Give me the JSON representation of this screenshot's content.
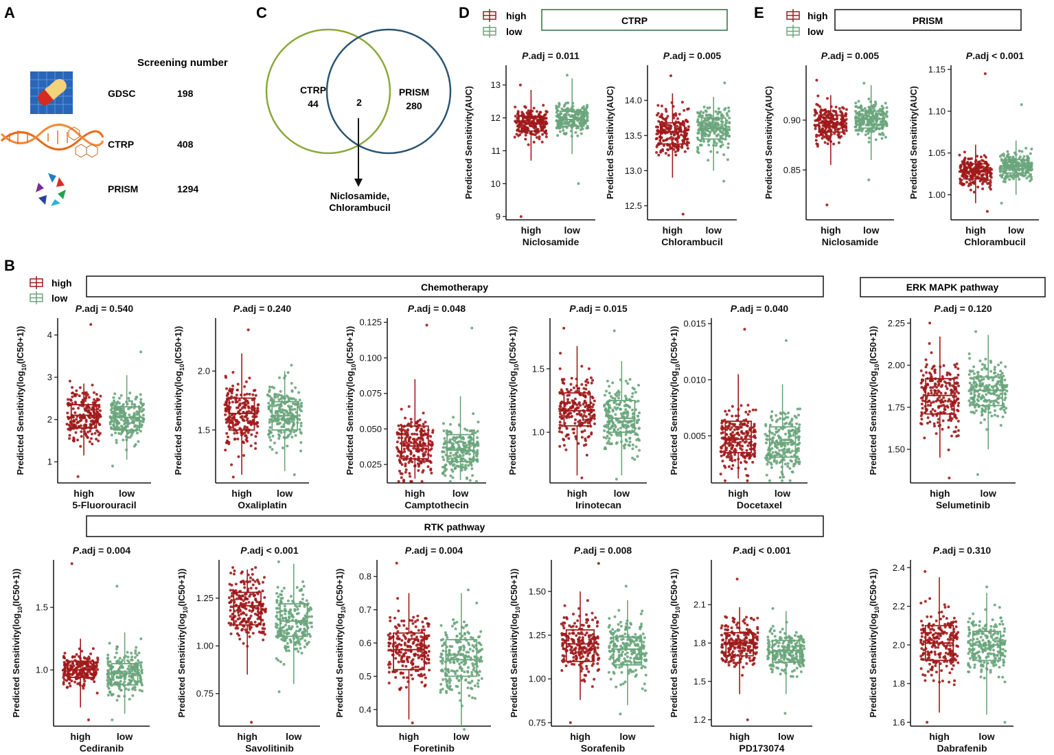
{
  "panels": {
    "a": {
      "letter": "A",
      "heading": "Screening number",
      "rows": [
        {
          "name": "GDSC",
          "count": "198",
          "icon": "pill-icon"
        },
        {
          "name": "CTRP",
          "count": "408",
          "icon": "dna-icon"
        },
        {
          "name": "PRISM",
          "count": "1294",
          "icon": "prism-logo-icon"
        }
      ]
    },
    "b": {
      "letter": "B",
      "chemo_header": "Chemotherapy",
      "rtk_header": "RTK pathway",
      "erk_header": "ERK MAPK pathway"
    },
    "c": {
      "letter": "C",
      "left_set": "CTRP",
      "left_count": "44",
      "overlap_count": "2",
      "right_set": "PRISM",
      "right_count": "280",
      "result_line1": "Niclosamide,",
      "result_line2": "Chlorambucil"
    },
    "d": {
      "letter": "D",
      "header": "CTRP"
    },
    "e": {
      "letter": "E",
      "header": "PRISM"
    }
  },
  "legend": {
    "high": "high",
    "low": "low"
  },
  "colors": {
    "high": "#a0191b",
    "low": "#6aa57c",
    "venn_left": "#8aa83a",
    "venn_right": "#2b5572",
    "box_border_d": "#2e6b3c"
  },
  "chart_data": [
    {
      "id": "d1",
      "type": "box",
      "title": "P.adj = 0.011",
      "xlabel": "Niclosamide",
      "ylabel": "Predicted Sensitivity(AUC)",
      "categories": [
        "high",
        "low"
      ],
      "ylim": [
        8.9,
        13.6
      ],
      "yticks": [
        9,
        10,
        11,
        12,
        13
      ],
      "tick_labels": [
        "9",
        "10",
        "11",
        "12",
        "13"
      ],
      "boxes": [
        {
          "q1": 11.6,
          "median": 11.85,
          "q3": 12.05,
          "wlo": 10.7,
          "whi": 12.85,
          "min": 9.0,
          "max": 13.0
        },
        {
          "q1": 11.75,
          "median": 11.95,
          "q3": 12.2,
          "wlo": 10.9,
          "whi": 13.2,
          "min": 10.0,
          "max": 13.3
        }
      ]
    },
    {
      "id": "d2",
      "type": "box",
      "title": "P.adj = 0.005",
      "xlabel": "Chlorambucil",
      "ylabel": "Predicted Sensitivity(AUC)",
      "categories": [
        "high",
        "low"
      ],
      "ylim": [
        12.3,
        14.5
      ],
      "yticks": [
        12.5,
        13.0,
        13.5,
        14.0
      ],
      "tick_labels": [
        "12.5",
        "13.0",
        "13.5",
        "14.0"
      ],
      "boxes": [
        {
          "q1": 13.38,
          "median": 13.55,
          "q3": 13.68,
          "wlo": 12.9,
          "whi": 14.1,
          "min": 12.38,
          "max": 14.35
        },
        {
          "q1": 13.45,
          "median": 13.6,
          "q3": 13.75,
          "wlo": 13.0,
          "whi": 14.05,
          "min": 12.85,
          "max": 14.25
        }
      ]
    },
    {
      "id": "e1",
      "type": "box",
      "title": "P.adj = 0.005",
      "xlabel": "Niclosamide",
      "ylabel": "Predicted Sensitivity(AUC)",
      "categories": [
        "high",
        "low"
      ],
      "ylim": [
        0.8,
        0.955
      ],
      "yticks": [
        0.85,
        0.9
      ],
      "tick_labels": [
        "0.85",
        "0.90"
      ],
      "boxes": [
        {
          "q1": 0.888,
          "median": 0.897,
          "q3": 0.905,
          "wlo": 0.855,
          "whi": 0.925,
          "min": 0.815,
          "max": 0.94
        },
        {
          "q1": 0.892,
          "median": 0.901,
          "q3": 0.909,
          "wlo": 0.86,
          "whi": 0.935,
          "min": 0.84,
          "max": 0.937
        }
      ]
    },
    {
      "id": "e2",
      "type": "box",
      "title": "P.adj < 0.001",
      "xlabel": "Chlorambucil",
      "ylabel": "Predicted Sensitivity(AUC)",
      "categories": [
        "high",
        "low"
      ],
      "ylim": [
        0.97,
        1.155
      ],
      "yticks": [
        1.0,
        1.05,
        1.1,
        1.15
      ],
      "tick_labels": [
        "1.00",
        "1.05",
        "1.10",
        "1.15"
      ],
      "boxes": [
        {
          "q1": 1.019,
          "median": 1.028,
          "q3": 1.037,
          "wlo": 0.99,
          "whi": 1.06,
          "min": 0.98,
          "max": 1.145
        },
        {
          "q1": 1.026,
          "median": 1.034,
          "q3": 1.042,
          "wlo": 1.0,
          "whi": 1.065,
          "min": 0.99,
          "max": 1.108
        }
      ]
    },
    {
      "id": "b1",
      "type": "box",
      "title": "P.adj = 0.540",
      "xlabel": "5-Fluorouracil",
      "ylabel": "Predicted Sensitivity(log10(IC50+1))",
      "categories": [
        "high",
        "low"
      ],
      "ylim": [
        0.5,
        4.4
      ],
      "yticks": [
        1,
        2,
        3,
        4
      ],
      "tick_labels": [
        "1",
        "2",
        "3",
        "4"
      ],
      "boxes": [
        {
          "q1": 1.8,
          "median": 2.1,
          "q3": 2.35,
          "wlo": 1.15,
          "whi": 2.85,
          "min": 0.65,
          "max": 4.25
        },
        {
          "q1": 1.75,
          "median": 2.05,
          "q3": 2.3,
          "wlo": 1.05,
          "whi": 3.05,
          "min": 0.9,
          "max": 3.6
        }
      ]
    },
    {
      "id": "b2",
      "type": "box",
      "title": "P.adj = 0.240",
      "xlabel": "Oxaliplatin",
      "ylabel": "Predicted Sensitivity(log10(IC50+1))",
      "categories": [
        "high",
        "low"
      ],
      "ylim": [
        1.05,
        2.45
      ],
      "yticks": [
        1.5,
        2.0
      ],
      "tick_labels": [
        "1.5",
        "2.0"
      ],
      "boxes": [
        {
          "q1": 1.5,
          "median": 1.64,
          "q3": 1.77,
          "wlo": 1.12,
          "whi": 2.15,
          "min": 1.1,
          "max": 2.35
        },
        {
          "q1": 1.5,
          "median": 1.62,
          "q3": 1.74,
          "wlo": 1.15,
          "whi": 2.0,
          "min": 1.12,
          "max": 2.05
        }
      ]
    },
    {
      "id": "b3",
      "type": "box",
      "title": "P.adj = 0.048",
      "xlabel": "Camptothecin",
      "ylabel": "Predicted Sensitivity(log10(IC50+1))",
      "categories": [
        "high",
        "low"
      ],
      "ylim": [
        0.012,
        0.128
      ],
      "yticks": [
        0.025,
        0.05,
        0.075,
        0.1,
        0.125
      ],
      "tick_labels": [
        "0.025",
        "0.050",
        "0.075",
        "0.100",
        "0.125"
      ],
      "boxes": [
        {
          "q1": 0.029,
          "median": 0.038,
          "q3": 0.052,
          "wlo": 0.015,
          "whi": 0.085,
          "min": 0.013,
          "max": 0.123
        },
        {
          "q1": 0.027,
          "median": 0.035,
          "q3": 0.046,
          "wlo": 0.014,
          "whi": 0.073,
          "min": 0.013,
          "max": 0.121
        }
      ]
    },
    {
      "id": "b4",
      "type": "box",
      "title": "P.adj = 0.015",
      "xlabel": "Irinotecan",
      "ylabel": "Predicted Sensitivity(log10(IC50+1))",
      "categories": [
        "high",
        "low"
      ],
      "ylim": [
        0.6,
        1.9
      ],
      "yticks": [
        1.0,
        1.5
      ],
      "tick_labels": [
        "1.0",
        "1.5"
      ],
      "boxes": [
        {
          "q1": 1.05,
          "median": 1.17,
          "q3": 1.31,
          "wlo": 0.66,
          "whi": 1.68,
          "min": 0.64,
          "max": 1.82
        },
        {
          "q1": 1.0,
          "median": 1.11,
          "q3": 1.25,
          "wlo": 0.66,
          "whi": 1.56,
          "min": 0.63,
          "max": 1.8
        }
      ]
    },
    {
      "id": "b5",
      "type": "box",
      "title": "P.adj = 0.040",
      "xlabel": "Docetaxel",
      "ylabel": "Predicted Sensitivity(log10(IC50+1))",
      "categories": [
        "high",
        "low"
      ],
      "ylim": [
        0.0008,
        0.0155
      ],
      "yticks": [
        0.005,
        0.01,
        0.015
      ],
      "tick_labels": [
        "0.005",
        "0.010",
        "0.015"
      ],
      "boxes": [
        {
          "q1": 0.0035,
          "median": 0.0047,
          "q3": 0.0063,
          "wlo": 0.0012,
          "whi": 0.0105,
          "min": 0.001,
          "max": 0.0145
        },
        {
          "q1": 0.0031,
          "median": 0.0044,
          "q3": 0.0058,
          "wlo": 0.0012,
          "whi": 0.0096,
          "min": 0.001,
          "max": 0.0135
        }
      ]
    },
    {
      "id": "b6",
      "type": "box",
      "title": "P.adj = 0.120",
      "xlabel": "Selumetinib",
      "ylabel": "Predicted Sensitivity(log10(IC50+1))",
      "categories": [
        "high",
        "low"
      ],
      "ylim": [
        1.3,
        2.28
      ],
      "yticks": [
        1.5,
        1.75,
        2.0,
        2.25
      ],
      "tick_labels": [
        "1.50",
        "1.75",
        "2.00",
        "2.25"
      ],
      "boxes": [
        {
          "q1": 1.71,
          "median": 1.82,
          "q3": 1.92,
          "wlo": 1.45,
          "whi": 2.17,
          "min": 1.33,
          "max": 2.25
        },
        {
          "q1": 1.76,
          "median": 1.85,
          "q3": 1.93,
          "wlo": 1.5,
          "whi": 2.18,
          "min": 1.35,
          "max": 2.2
        }
      ]
    },
    {
      "id": "b7",
      "type": "box",
      "title": "P.adj = 0.004",
      "xlabel": "Cediranib",
      "ylabel": "Predicted Sensitivity(log10(IC50+1))",
      "categories": [
        "high",
        "low"
      ],
      "ylim": [
        0.55,
        1.88
      ],
      "yticks": [
        1.0,
        1.5
      ],
      "tick_labels": [
        "1.0",
        "1.5"
      ],
      "boxes": [
        {
          "q1": 0.94,
          "median": 1.0,
          "q3": 1.07,
          "wlo": 0.7,
          "whi": 1.25,
          "min": 0.6,
          "max": 1.85
        },
        {
          "q1": 0.88,
          "median": 0.97,
          "q3": 1.05,
          "wlo": 0.65,
          "whi": 1.3,
          "min": 0.6,
          "max": 1.67
        }
      ]
    },
    {
      "id": "b8",
      "type": "box",
      "title": "P.adj < 0.001",
      "xlabel": "Savolitinib",
      "ylabel": "Predicted Sensitivity(log10(IC50+1))",
      "categories": [
        "high",
        "low"
      ],
      "ylim": [
        0.58,
        1.45
      ],
      "yticks": [
        0.75,
        1.0,
        1.25
      ],
      "tick_labels": [
        "0.75",
        "1.00",
        "1.25"
      ],
      "boxes": [
        {
          "q1": 1.11,
          "median": 1.21,
          "q3": 1.28,
          "wlo": 0.85,
          "whi": 1.4,
          "min": 0.6,
          "max": 1.41
        },
        {
          "q1": 1.05,
          "median": 1.13,
          "q3": 1.22,
          "wlo": 0.8,
          "whi": 1.43,
          "min": 0.76,
          "max": 1.44
        }
      ]
    },
    {
      "id": "b9",
      "type": "box",
      "title": "P.adj = 0.004",
      "xlabel": "Foretinib",
      "ylabel": "Predicted Sensitivity(log10(IC50+1))",
      "categories": [
        "high",
        "low"
      ],
      "ylim": [
        0.35,
        0.85
      ],
      "yticks": [
        0.4,
        0.5,
        0.6,
        0.7,
        0.8
      ],
      "tick_labels": [
        "0.4",
        "0.5",
        "0.6",
        "0.7",
        "0.8"
      ],
      "boxes": [
        {
          "q1": 0.52,
          "median": 0.58,
          "q3": 0.63,
          "wlo": 0.37,
          "whi": 0.75,
          "min": 0.36,
          "max": 0.84
        },
        {
          "q1": 0.5,
          "median": 0.55,
          "q3": 0.61,
          "wlo": 0.35,
          "whi": 0.75,
          "min": 0.34,
          "max": 0.76
        }
      ]
    },
    {
      "id": "b10",
      "type": "box",
      "title": "P.adj = 0.008",
      "xlabel": "Sorafenib",
      "ylabel": "Predicted Sensitivity(log10(IC50+1))",
      "categories": [
        "high",
        "low"
      ],
      "ylim": [
        0.73,
        1.68
      ],
      "yticks": [
        0.75,
        1.0,
        1.25,
        1.5
      ],
      "tick_labels": [
        "0.75",
        "1.00",
        "1.25",
        "1.50"
      ],
      "boxes": [
        {
          "q1": 1.1,
          "median": 1.2,
          "q3": 1.28,
          "wlo": 0.88,
          "whi": 1.5,
          "min": 0.75,
          "max": 1.66
        },
        {
          "q1": 1.08,
          "median": 1.17,
          "q3": 1.24,
          "wlo": 0.85,
          "whi": 1.45,
          "min": 0.8,
          "max": 1.53
        }
      ]
    },
    {
      "id": "b11",
      "type": "box",
      "title": "P.adj < 0.001",
      "xlabel": "PD173074",
      "ylabel": "Predicted Sensitivity(log10(IC50+1))",
      "categories": [
        "high",
        "low"
      ],
      "ylim": [
        1.15,
        2.45
      ],
      "yticks": [
        1.2,
        1.5,
        1.8,
        2.1
      ],
      "tick_labels": [
        "1.2",
        "1.5",
        "1.8",
        "2.1"
      ],
      "boxes": [
        {
          "q1": 1.7,
          "median": 1.8,
          "q3": 1.88,
          "wlo": 1.4,
          "whi": 2.08,
          "min": 1.2,
          "max": 2.3
        },
        {
          "q1": 1.65,
          "median": 1.74,
          "q3": 1.82,
          "wlo": 1.4,
          "whi": 2.05,
          "min": 1.25,
          "max": 2.07
        }
      ]
    },
    {
      "id": "b12",
      "type": "box",
      "title": "P.adj = 0.310",
      "xlabel": "Dabrafenib",
      "ylabel": "Predicted Sensitivity(log10(IC50+1))",
      "categories": [
        "high",
        "low"
      ],
      "ylim": [
        1.58,
        2.44
      ],
      "yticks": [
        1.6,
        1.8,
        2.0,
        2.2,
        2.4
      ],
      "tick_labels": [
        "1.6",
        "1.8",
        "2.0",
        "2.2",
        "2.4"
      ],
      "boxes": [
        {
          "q1": 1.92,
          "median": 2.01,
          "q3": 2.1,
          "wlo": 1.65,
          "whi": 2.35,
          "min": 1.6,
          "max": 2.38
        },
        {
          "q1": 1.92,
          "median": 2.0,
          "q3": 2.07,
          "wlo": 1.64,
          "whi": 2.27,
          "min": 1.6,
          "max": 2.3
        }
      ]
    }
  ]
}
